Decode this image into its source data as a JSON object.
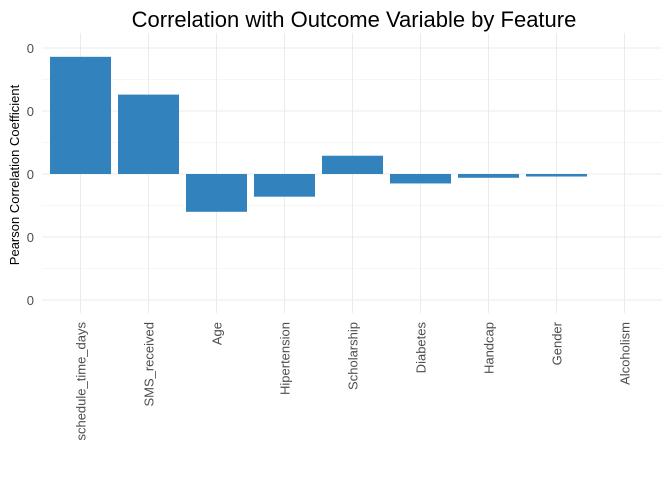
{
  "chart_data": {
    "type": "bar",
    "title": "Correlation with Outcome Variable by Feature",
    "xlabel": "",
    "ylabel": "Pearson Correlation Coefficient",
    "categories": [
      "schedule_time_days",
      "SMS_received",
      "Age",
      "Hipertension",
      "Scholarship",
      "Diabetes",
      "Handcap",
      "Gender",
      "Alcoholism"
    ],
    "values": [
      0.186,
      0.126,
      -0.06,
      -0.036,
      0.029,
      -0.015,
      -0.006,
      -0.004,
      0.0
    ],
    "ylim": [
      -0.2,
      0.2
    ],
    "yticks": [
      -0.2,
      -0.1,
      0.0,
      0.1,
      0.2
    ],
    "ytick_labels": [
      "0",
      "0",
      "0",
      "0",
      "0"
    ],
    "bar_color": "#3182bd",
    "grid": true,
    "legend": "none"
  }
}
